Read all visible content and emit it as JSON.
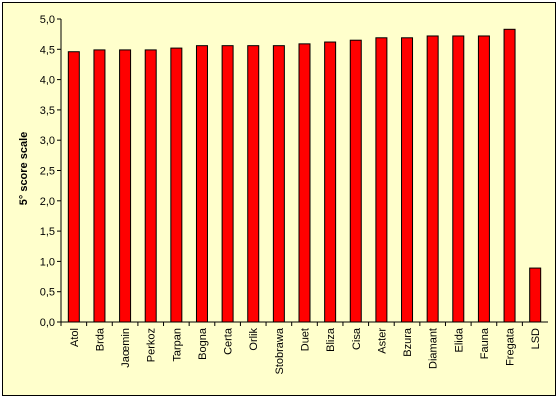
{
  "chart_data": {
    "type": "bar",
    "title": "",
    "xlabel": "",
    "ylabel": "5° score scale",
    "ylim": [
      0,
      5
    ],
    "ytick_step": 0.5,
    "ytick_labels": [
      "0,0",
      "0,5",
      "1,0",
      "1,5",
      "2,0",
      "2,5",
      "3,0",
      "3,5",
      "4,0",
      "4,5",
      "5,0"
    ],
    "categories": [
      "Atol",
      "Brda",
      "Jaœmin",
      "Perkoz",
      "Tarpan",
      "Bogna",
      "Certa",
      "Orlik",
      "Stobrawa",
      "Duet",
      "Bliza",
      "Cisa",
      "Aster",
      "Bzura",
      "Diamant",
      "Elida",
      "Fauna",
      "Fregata",
      "LSD"
    ],
    "values": [
      4.46,
      4.49,
      4.49,
      4.49,
      4.52,
      4.56,
      4.56,
      4.56,
      4.56,
      4.59,
      4.62,
      4.65,
      4.69,
      4.69,
      4.72,
      4.72,
      4.72,
      4.83,
      0.89
    ],
    "grid": false,
    "legend": "none",
    "colors": {
      "bar_fill": "#ff0000",
      "bar_stroke": "#000000",
      "plot_bg": "#ffffcc",
      "axis": "#000000"
    }
  }
}
